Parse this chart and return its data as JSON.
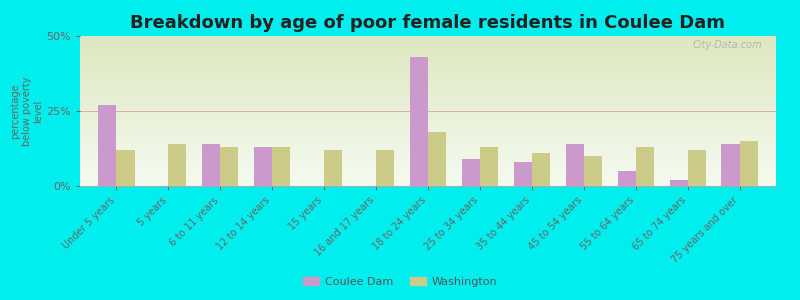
{
  "title": "Breakdown by age of poor female residents in Coulee Dam",
  "ylabel": "percentage\nbelow poverty\nlevel",
  "categories": [
    "Under 5 years",
    "5 years",
    "6 to 11 years",
    "12 to 14 years",
    "15 years",
    "16 and 17 years",
    "18 to 24 years",
    "25 to 34 years",
    "35 to 44 years",
    "45 to 54 years",
    "55 to 64 years",
    "65 to 74 years",
    "75 years and over"
  ],
  "coulee_dam": [
    27.0,
    0.0,
    14.0,
    13.0,
    0.0,
    0.0,
    43.0,
    9.0,
    8.0,
    14.0,
    5.0,
    2.0,
    14.0
  ],
  "washington": [
    12.0,
    14.0,
    13.0,
    13.0,
    12.0,
    12.0,
    18.0,
    13.0,
    11.0,
    10.0,
    13.0,
    12.0,
    15.0
  ],
  "coulee_color": "#cc99cc",
  "washington_color": "#cccc88",
  "background_color": "#00eeee",
  "plot_bg_top": "#dde8c0",
  "plot_bg_bottom": "#f5faf0",
  "ylim": [
    0,
    50
  ],
  "yticks": [
    0,
    25,
    50
  ],
  "ytick_labels": [
    "0%",
    "25%",
    "50%"
  ],
  "bar_width": 0.35,
  "title_fontsize": 13,
  "legend_labels": [
    "Coulee Dam",
    "Washington"
  ],
  "watermark": "City-Data.com"
}
